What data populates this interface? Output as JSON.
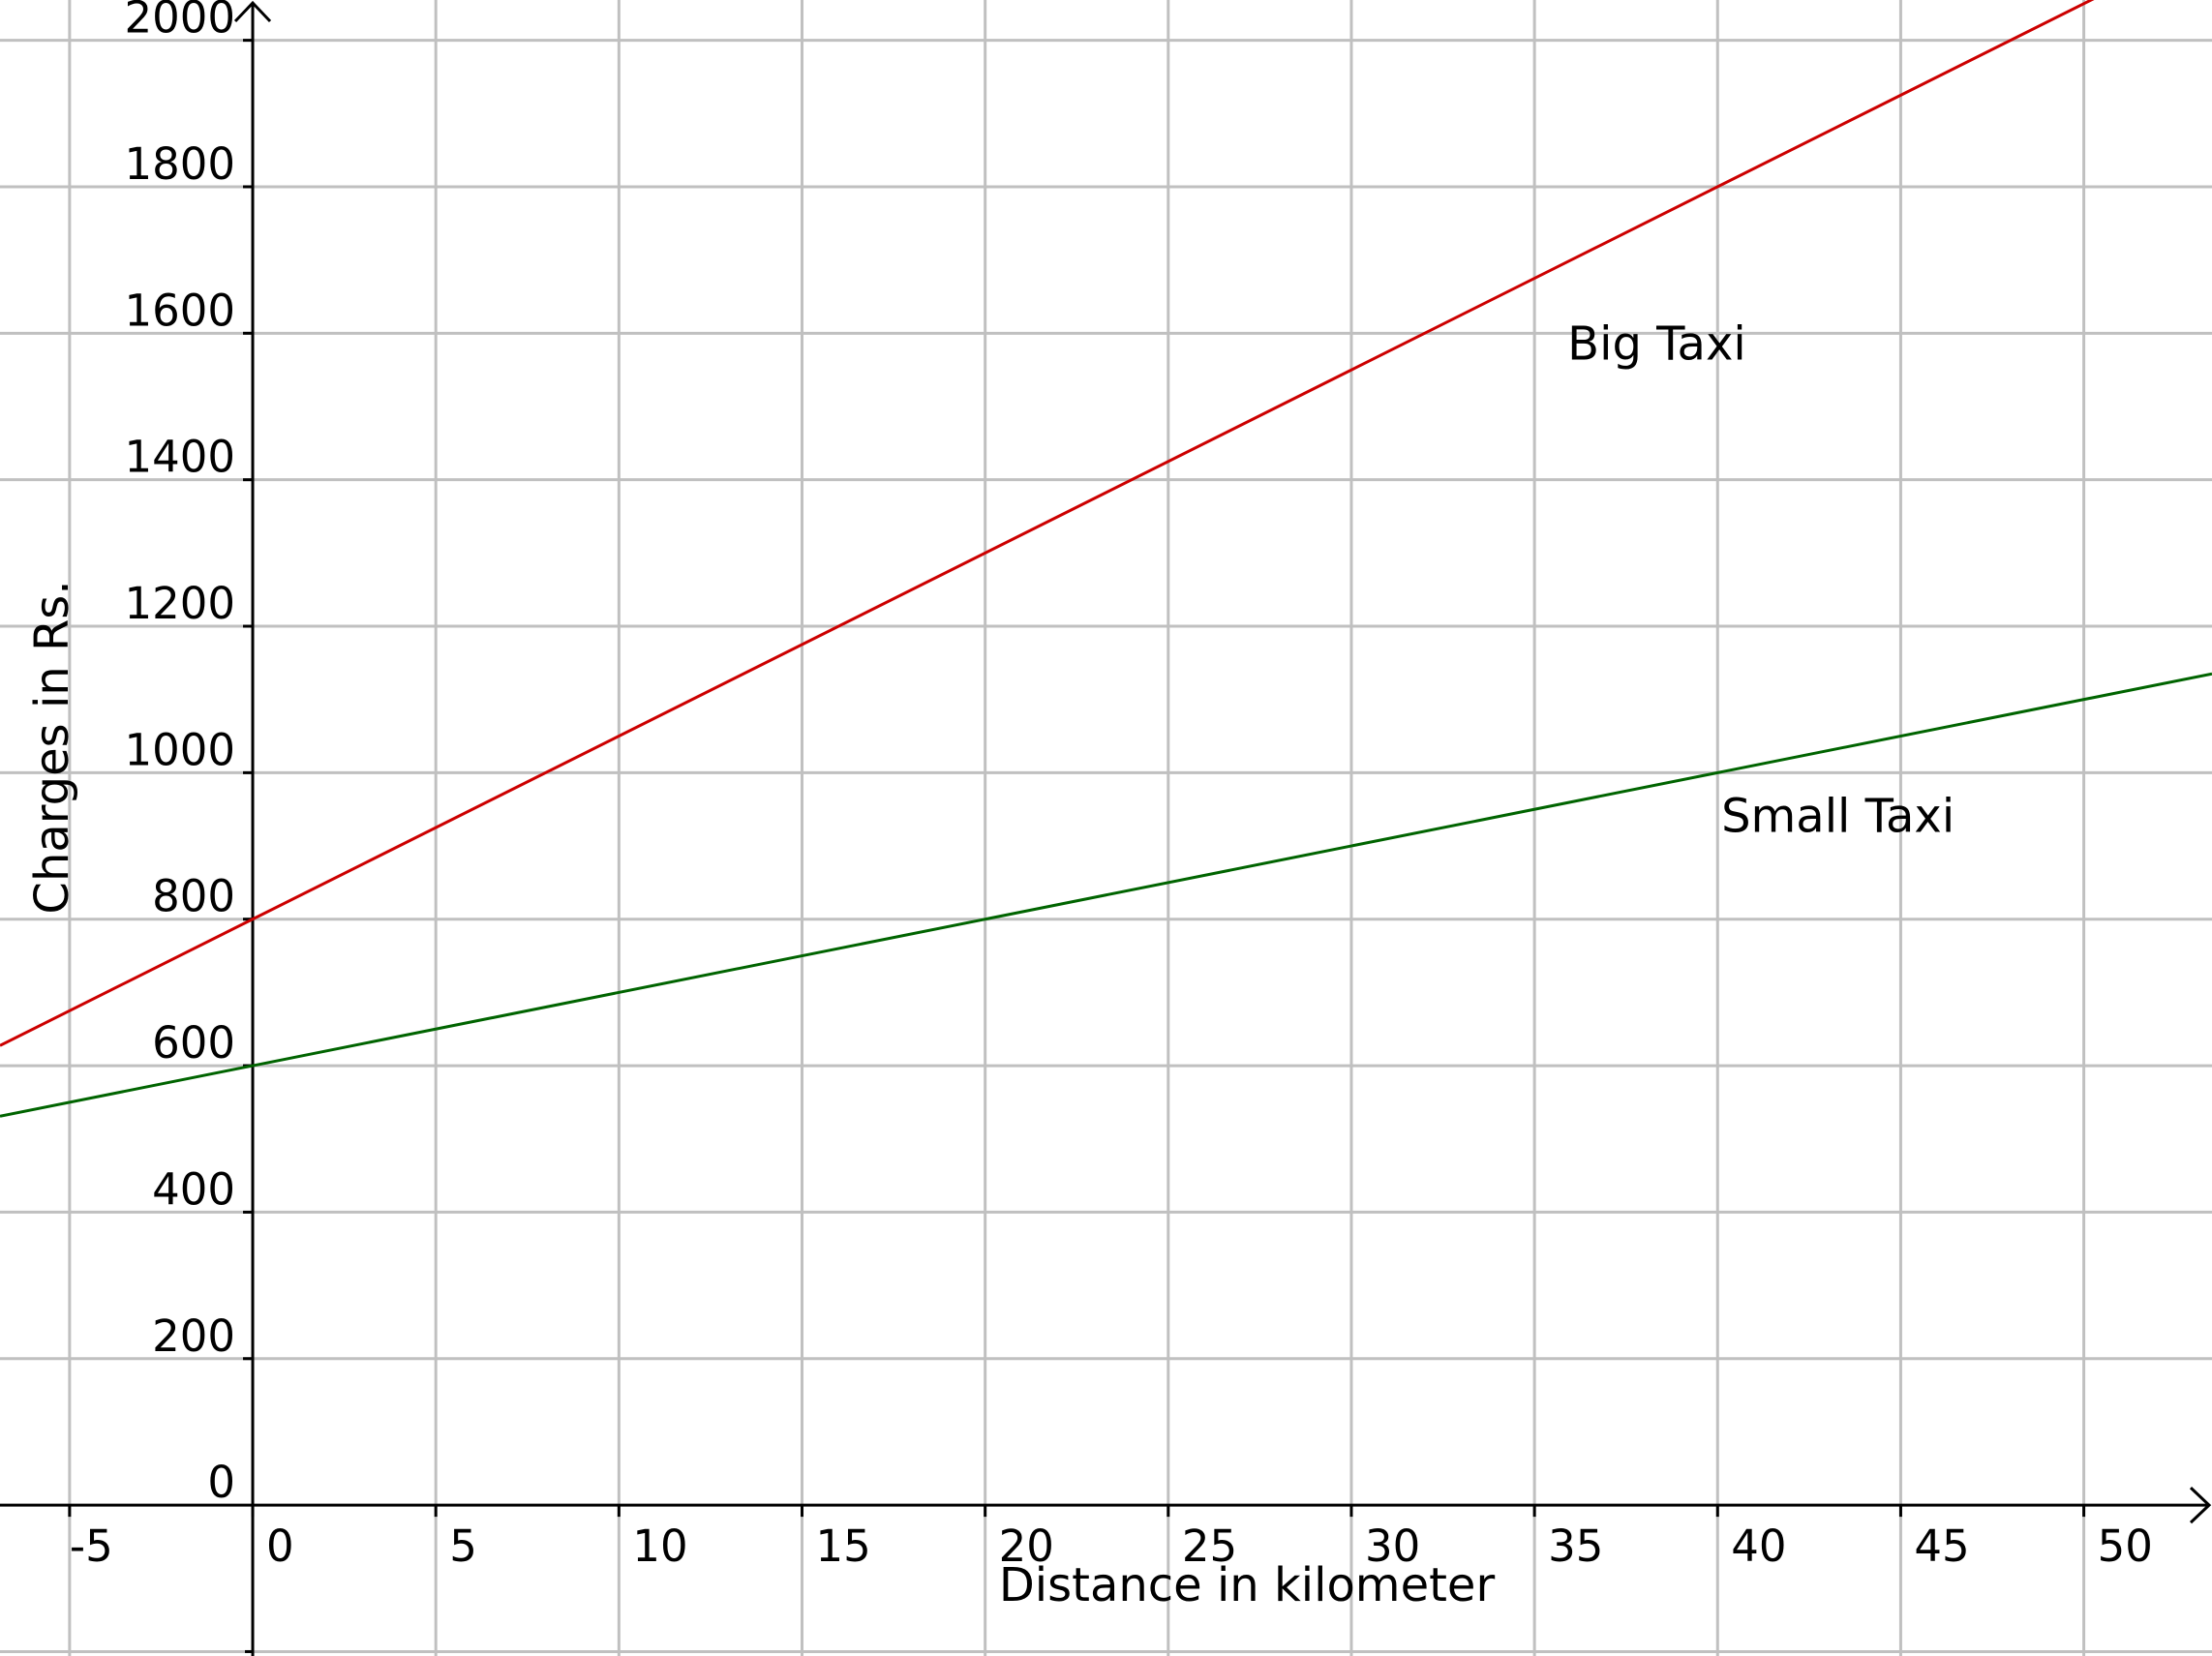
{
  "chart_data": {
    "type": "line",
    "title": "",
    "xlabel": "Distance in kilometer",
    "ylabel": "Charges in Rs.",
    "xlim": [
      -6.9,
      53.5
    ],
    "ylim": [
      -206,
      2055
    ],
    "grid": true,
    "x_ticks": [
      -5,
      0,
      5,
      10,
      15,
      20,
      25,
      30,
      35,
      40,
      45,
      50
    ],
    "y_ticks": [
      0,
      200,
      400,
      600,
      800,
      1000,
      1200,
      1400,
      1600,
      1800,
      2000
    ],
    "series": [
      {
        "name": "Big Taxi",
        "color": "#cc0000",
        "x": [
          -6.9,
          53.5
        ],
        "y": [
          627.5,
          2137.5
        ],
        "equation": "y = 800 + 25x"
      },
      {
        "name": "Small Taxi",
        "color": "#006400",
        "x": [
          -6.9,
          53.5
        ],
        "y": [
          531,
          1135
        ],
        "equation": "y = 600 + 10x"
      }
    ],
    "annotations": [
      {
        "text": "Big Taxi",
        "x": 35.9,
        "y": 1564
      },
      {
        "text": "Small Taxi",
        "x": 40.1,
        "y": 919
      }
    ]
  }
}
